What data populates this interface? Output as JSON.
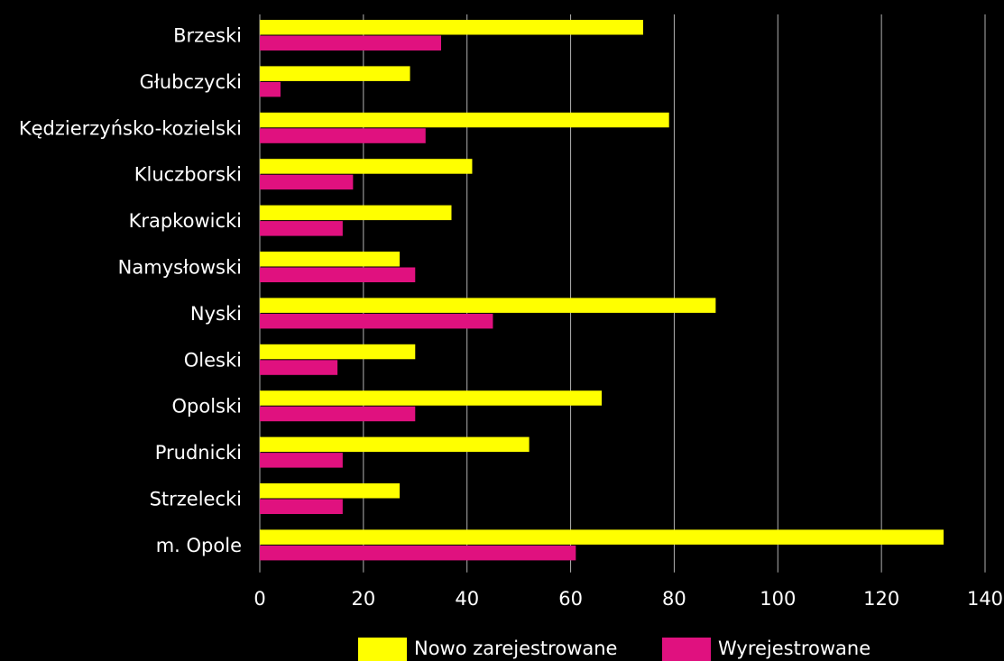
{
  "chart_data": {
    "type": "bar",
    "orientation": "horizontal",
    "categories": [
      "Brzeski",
      "Głubczycki",
      "Kędzierzyńsko-kozielski",
      "Kluczborski",
      "Krapkowicki",
      "Namysłowski",
      "Nyski",
      "Oleski",
      "Opolski",
      "Prudnicki",
      "Strzelecki",
      "m. Opole"
    ],
    "series": [
      {
        "name": "Nowo zarejestrowane",
        "color": "#ffff00",
        "values": [
          74,
          29,
          79,
          41,
          37,
          27,
          88,
          30,
          66,
          52,
          27,
          132
        ]
      },
      {
        "name": "Wyrejestrowane",
        "color": "#e0117f",
        "values": [
          35,
          4,
          32,
          18,
          16,
          30,
          45,
          15,
          30,
          16,
          16,
          61
        ]
      }
    ],
    "xlim": [
      0,
      140
    ],
    "xticks": [
      "0",
      "20",
      "40",
      "60",
      "80",
      "100",
      "120",
      "140"
    ],
    "grid": "vertical",
    "legend": "bottom"
  },
  "colors": {
    "background": "#000000",
    "text": "#ffffff",
    "grid": "#b0b0b0"
  }
}
